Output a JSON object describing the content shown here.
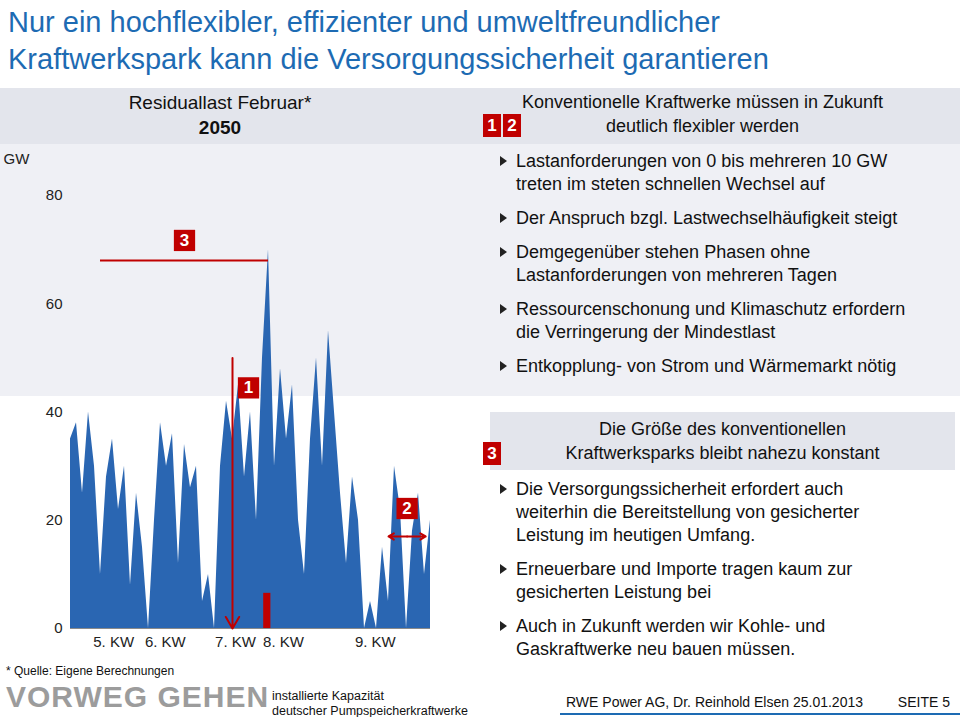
{
  "header": {
    "title_lines": [
      "Nur ein hochflexibler, effizienter und umweltfreundlicher",
      "Kraftwerkspark kann die Versorgungssicherheit garantieren"
    ]
  },
  "chart_data": {
    "type": "area",
    "title": "Residuallast Februar*",
    "subtitle": "2050",
    "y_label": "GW",
    "color": "#2a66b2",
    "x": [
      0,
      0.5,
      1,
      1.5,
      2,
      2.5,
      3,
      3.5,
      4,
      4.5,
      5,
      5.5,
      6,
      6.5,
      7,
      7.5,
      8,
      8.5,
      9,
      9.5,
      10,
      10.5,
      11,
      11.5,
      12,
      12.5,
      13,
      13.5,
      14,
      14.5,
      15,
      15.5,
      16,
      16.5,
      17,
      17.5,
      18,
      18.5,
      19,
      19.5,
      20,
      20.5,
      21,
      21.5,
      22,
      22.5,
      23,
      23.5,
      24,
      24.5,
      25,
      25.5,
      26,
      26.5,
      27,
      27.5,
      28,
      28.5,
      29,
      29.5,
      30
    ],
    "values": [
      35,
      38,
      25,
      40,
      30,
      10,
      28,
      35,
      22,
      30,
      8,
      25,
      15,
      0,
      20,
      38,
      30,
      36,
      12,
      34,
      26,
      30,
      5,
      10,
      0,
      30,
      42,
      35,
      45,
      28,
      40,
      20,
      50,
      70,
      30,
      48,
      35,
      45,
      20,
      10,
      35,
      50,
      30,
      55,
      40,
      25,
      12,
      28,
      20,
      0,
      5,
      0,
      15,
      5,
      30,
      22,
      0,
      18,
      25,
      10,
      20
    ],
    "xlim": [
      0,
      30
    ],
    "xticks": [
      {
        "value": 3.6,
        "label": "5. KW"
      },
      {
        "value": 7.9,
        "label": "6. KW"
      },
      {
        "value": 13.75,
        "label": "7. KW"
      },
      {
        "value": 17.75,
        "label": "8. KW"
      },
      {
        "value": 25.4,
        "label": "9. KW"
      }
    ],
    "ylim": [
      0,
      80
    ],
    "yticks": [
      0,
      20,
      40,
      60,
      80
    ],
    "annotations": [
      {
        "label": "3",
        "kind": "hline",
        "y": 68,
        "x1": 2.5,
        "x2": 16.5,
        "color": "#c00000"
      },
      {
        "label": "1",
        "kind": "vline",
        "x": 13.5,
        "y1": 0,
        "y2": 50,
        "color": "#c00000"
      },
      {
        "label": "2",
        "kind": "hrange",
        "x1": 26.5,
        "x2": 29.6,
        "y": 17,
        "color": "#c00000"
      },
      {
        "label_lines": [
          "installierte Kapazität",
          "deutscher Pumpspeicherkraftwerke"
        ],
        "kind": "bar",
        "x1": 16.1,
        "x2": 16.7,
        "y1": 0,
        "y2": 6.5,
        "color": "#c00000"
      }
    ],
    "source": "* Quelle: Eigene Berechnungen"
  },
  "panels": [
    {
      "numbers": [
        "1",
        "2"
      ],
      "heading_lines": [
        "Konventionelle Kraftwerke müssen in Zukunft",
        "deutlich flexibler werden"
      ],
      "bullets": [
        [
          "Lastanforderungen von 0 bis mehreren 10 GW",
          "treten im steten schnellen Wechsel auf"
        ],
        [
          "Der Anspruch bzgl. Lastwechselhäufigkeit steigt"
        ],
        [
          "Demgegenüber stehen Phasen ohne",
          "Lastanforderungen von mehreren Tagen"
        ],
        [
          "Ressourcenschonung und Klimaschutz erfordern",
          "die Verringerung der Mindestlast"
        ],
        [
          "Entkopplung- von Strom und Wärmemarkt nötig"
        ]
      ]
    },
    {
      "numbers": [
        "3"
      ],
      "heading_lines": [
        "Die Größe des konventionellen",
        "Kraftwerksparks bleibt nahezu konstant"
      ],
      "bullets": [
        [
          "Die Versorgungssicherheit erfordert auch",
          "weiterhin die Bereitstellung von gesicherter",
          "Leistung im heutigen Umfang."
        ],
        [
          "Erneuerbare und Importe tragen kaum zur",
          "gesicherten Leistung bei"
        ],
        [
          "Auch in Zukunft werden wir Kohle- und",
          "Gaskraftwerke neu bauen müssen."
        ]
      ]
    }
  ],
  "footer": {
    "logo": "VORWEG GEHEN",
    "author": "RWE Power AG, Dr. Reinhold Elsen 25.01.2013",
    "page": "SEITE 5"
  }
}
